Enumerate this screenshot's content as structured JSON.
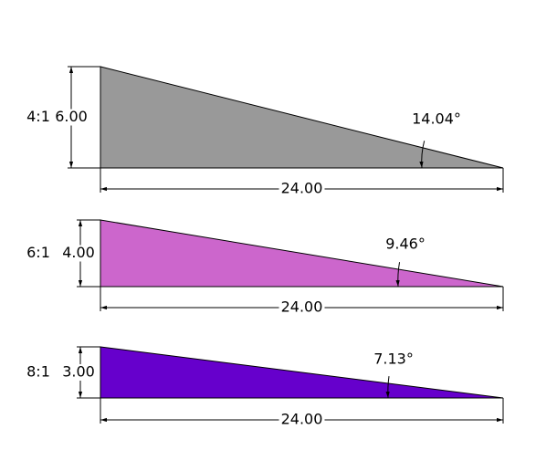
{
  "wedges": [
    {
      "ratio": "4:1",
      "height": "6.00",
      "angle": "14.04°",
      "length": "24.00",
      "color": "#999999"
    },
    {
      "ratio": "6:1",
      "height": "4.00",
      "angle": "9.46°",
      "length": "24.00",
      "color": "#cc66cc"
    },
    {
      "ratio": "8:1",
      "height": "3.00",
      "angle": "7.13°",
      "length": "24.00",
      "color": "#6600cc"
    }
  ]
}
